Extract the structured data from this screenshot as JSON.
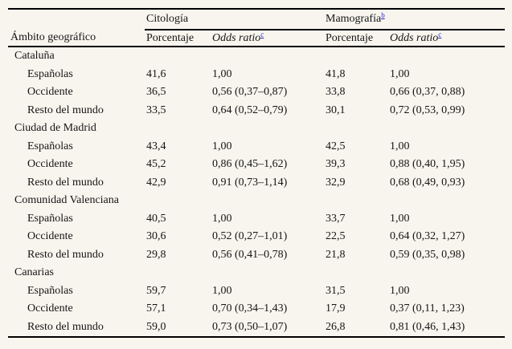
{
  "colors": {
    "background": "#f8f5ee",
    "text": "#151515",
    "rule": "#000000",
    "footnote_link_blue": "#2525cc"
  },
  "table": {
    "row_header": "Ámbito geográfico",
    "col_groups": [
      {
        "label": "Citología",
        "sup": ""
      },
      {
        "label": "Mamografía",
        "sup": "b"
      }
    ],
    "subheader": {
      "porcentaje": "Porcentaje",
      "odds_ratio": "Odds ratio",
      "odds_ratio_sup": "c"
    },
    "groups": [
      {
        "name": "Cataluña",
        "rows": [
          {
            "label": "Españolas",
            "cit_pct": "41,6",
            "cit_or": "1,00",
            "mam_pct": "41,8",
            "mam_or": "1,00"
          },
          {
            "label": "Occidente",
            "cit_pct": "36,5",
            "cit_or": "0,56 (0,37–0,87)",
            "mam_pct": "33,8",
            "mam_or": "0,66 (0,37, 0,88)"
          },
          {
            "label": "Resto del mundo",
            "cit_pct": "33,5",
            "cit_or": "0,64 (0,52–0,79)",
            "mam_pct": "30,1",
            "mam_or": "0,72 (0,53, 0,99)"
          }
        ]
      },
      {
        "name": "Ciudad de Madrid",
        "rows": [
          {
            "label": "Españolas",
            "cit_pct": "43,4",
            "cit_or": "1,00",
            "mam_pct": "42,5",
            "mam_or": "1,00"
          },
          {
            "label": "Occidente",
            "cit_pct": "45,2",
            "cit_or": "0,86 (0,45–1,62)",
            "mam_pct": "39,3",
            "mam_or": "0,88 (0,40, 1,95)"
          },
          {
            "label": "Resto del mundo",
            "cit_pct": "42,9",
            "cit_or": "0,91 (0,73–1,14)",
            "mam_pct": "32,9",
            "mam_or": "0,68 (0,49, 0,93)"
          }
        ]
      },
      {
        "name": "Comunidad Valenciana",
        "rows": [
          {
            "label": "Españolas",
            "cit_pct": "40,5",
            "cit_or": "1,00",
            "mam_pct": "33,7",
            "mam_or": "1,00"
          },
          {
            "label": "Occidente",
            "cit_pct": "30,6",
            "cit_or": "0,52 (0,27–1,01)",
            "mam_pct": "22,5",
            "mam_or": "0,64 (0,32, 1,27)"
          },
          {
            "label": "Resto del mundo",
            "cit_pct": "29,8",
            "cit_or": "0,56 (0,41–0,78)",
            "mam_pct": "21,8",
            "mam_or": "0,59 (0,35, 0,98)"
          }
        ]
      },
      {
        "name": "Canarias",
        "rows": [
          {
            "label": "Españolas",
            "cit_pct": "59,7",
            "cit_or": "1,00",
            "mam_pct": "31,5",
            "mam_or": "1,00"
          },
          {
            "label": "Occidente",
            "cit_pct": "57,1",
            "cit_or": "0,70 (0,34–1,43)",
            "mam_pct": "17,9",
            "mam_or": "0,37 (0,11, 1,23)"
          },
          {
            "label": "Resto del mundo",
            "cit_pct": "59,0",
            "cit_or": "0,73 (0,50–1,07)",
            "mam_pct": "26,8",
            "mam_or": "0,81 (0,46, 1,43)"
          }
        ]
      }
    ]
  }
}
